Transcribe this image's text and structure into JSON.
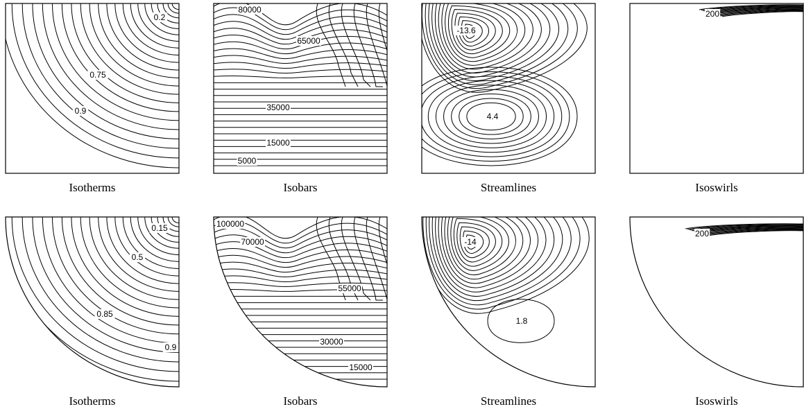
{
  "rows": [
    {
      "id": "square",
      "panels": [
        {
          "kind": "isotherms",
          "caption": "Isotherms",
          "labels": [
            "0.2",
            "0.75",
            "0.9"
          ]
        },
        {
          "kind": "isobars",
          "caption": "Isobars",
          "labels": [
            "80000",
            "65000",
            "35000",
            "15000",
            "5000"
          ]
        },
        {
          "kind": "streamlines",
          "caption": "Streamlines",
          "labels": [
            "-13.6",
            "4.4"
          ]
        },
        {
          "kind": "isoswirls",
          "caption": "Isoswirls",
          "labels": [
            "200"
          ]
        }
      ]
    },
    {
      "id": "quarter",
      "panels": [
        {
          "kind": "isotherms",
          "caption": "Isotherms",
          "labels": [
            "0.15",
            "0.5",
            "0.85",
            "0.9"
          ]
        },
        {
          "kind": "isobars",
          "caption": "Isobars",
          "labels": [
            "100000",
            "70000",
            "55000",
            "30000",
            "15000"
          ]
        },
        {
          "kind": "streamlines",
          "caption": "Streamlines",
          "labels": [
            "-14",
            "1.8"
          ]
        },
        {
          "kind": "isoswirls",
          "caption": "Isoswirls",
          "labels": [
            "200"
          ]
        }
      ]
    }
  ]
}
